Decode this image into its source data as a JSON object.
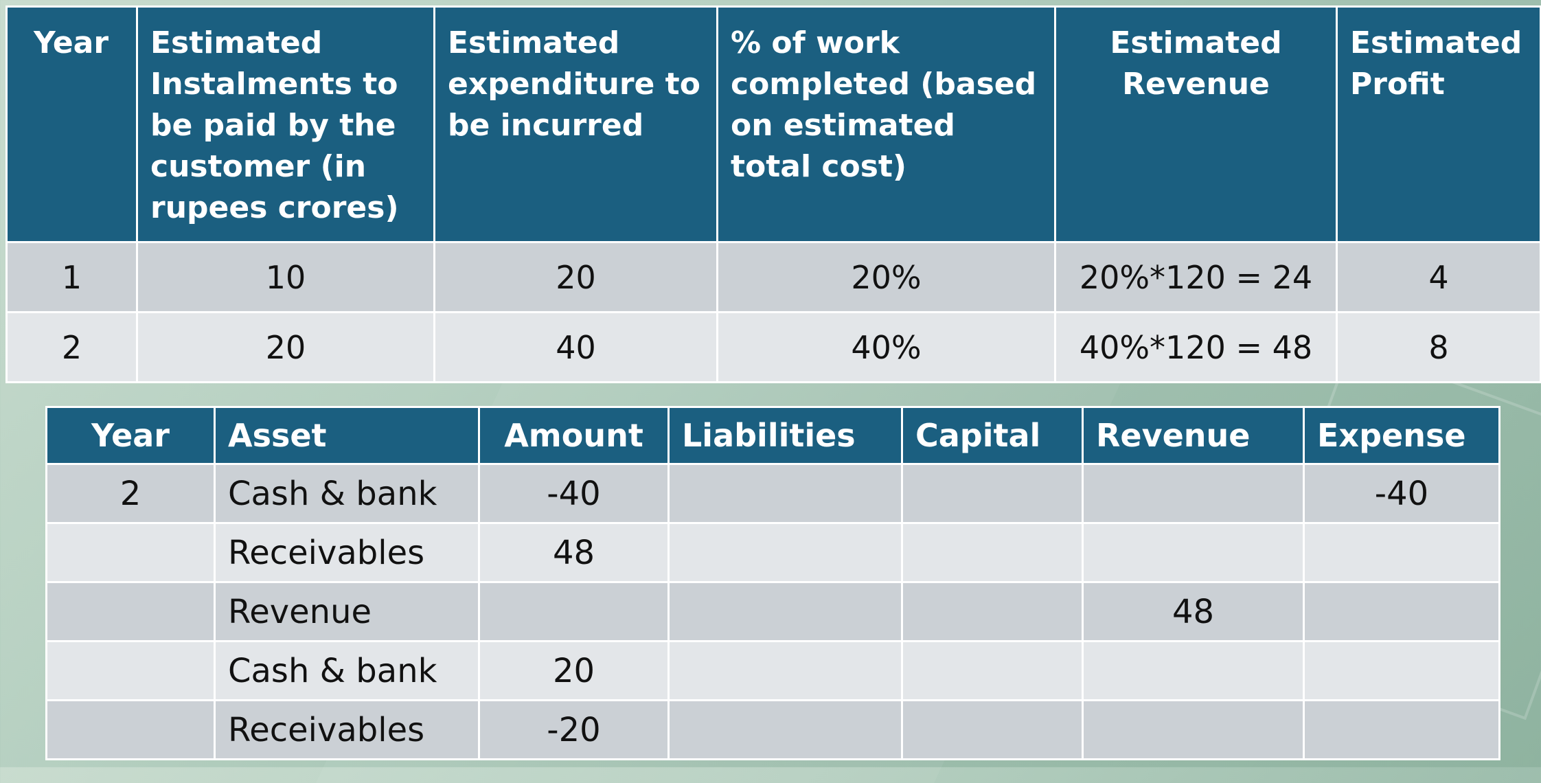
{
  "top_table": {
    "headers": [
      "Year",
      "Estimated Instalments to be  paid by the customer (in rupees crores)",
      "Estimated expenditure to be incurred",
      "% of work completed (based on estimated total cost)",
      "Estimated Revenue",
      "Estimated Profit"
    ],
    "rows": [
      [
        "1",
        "10",
        "20",
        "20%",
        "20%*120 = 24",
        "4"
      ],
      [
        "2",
        "20",
        "40",
        "40%",
        "40%*120 = 48",
        "8"
      ]
    ]
  },
  "bottom_table": {
    "headers": [
      "Year",
      "Asset",
      "Amount",
      "Liabilities",
      "Capital",
      "Revenue",
      "Expense"
    ],
    "rows": [
      [
        "2",
        "Cash & bank",
        "-40",
        "",
        "",
        "",
        "-40"
      ],
      [
        "",
        "Receivables",
        "48",
        "",
        "",
        "",
        ""
      ],
      [
        "",
        "Revenue",
        "",
        "",
        "",
        "48",
        ""
      ],
      [
        "",
        "Cash & bank",
        "20",
        "",
        "",
        "",
        ""
      ],
      [
        "",
        "Receivables",
        "-20",
        "",
        "",
        "",
        ""
      ]
    ]
  }
}
